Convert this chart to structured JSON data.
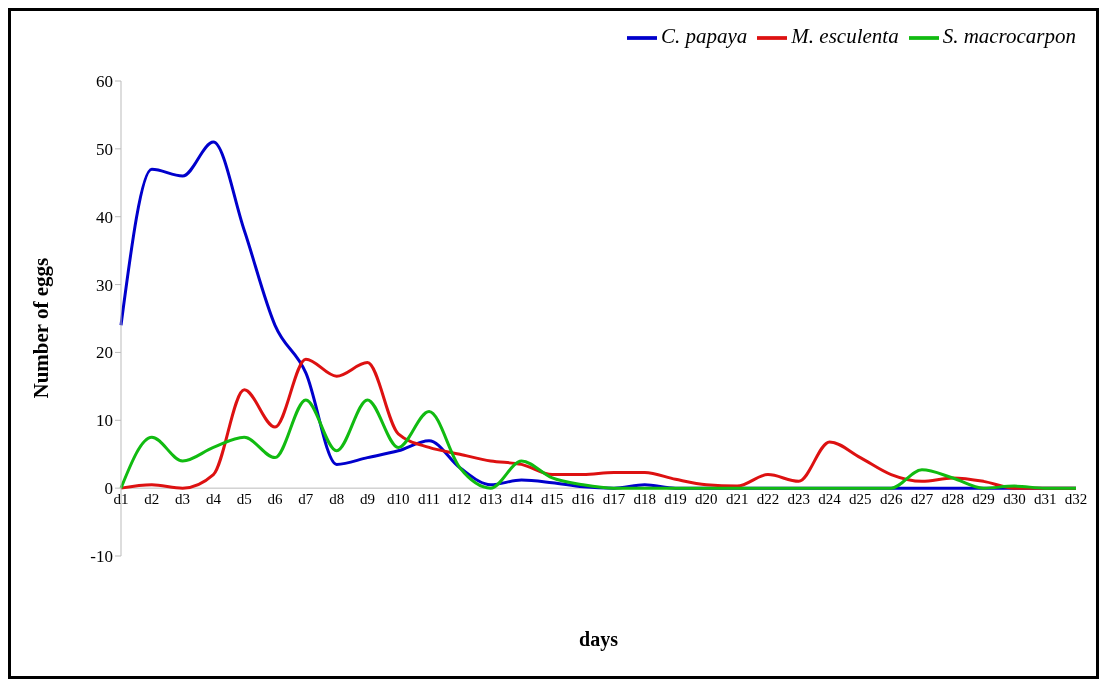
{
  "chart_data": {
    "type": "line",
    "xlabel": "days",
    "ylabel": "Number of eggs",
    "categories": [
      "d1",
      "d2",
      "d3",
      "d4",
      "d5",
      "d6",
      "d7",
      "d8",
      "d9",
      "d10",
      "d11",
      "d12",
      "d13",
      "d14",
      "d15",
      "d16",
      "d17",
      "d18",
      "d19",
      "d20",
      "d21",
      "d22",
      "d23",
      "d24",
      "d25",
      "d26",
      "d27",
      "d28",
      "d29",
      "d30",
      "d31",
      "d32"
    ],
    "series": [
      {
        "name": "C. papaya",
        "color": "#0000cc",
        "values": [
          24,
          47,
          46,
          51,
          38,
          24,
          17,
          3.5,
          4.5,
          5.5,
          7,
          3,
          0.5,
          1.2,
          0.8,
          0.2,
          0,
          0.5,
          0,
          0,
          0,
          0,
          0,
          0,
          0,
          0,
          0,
          0,
          0,
          0,
          0,
          0
        ]
      },
      {
        "name": "M. esculenta",
        "color": "#dd1111",
        "values": [
          0,
          0.5,
          0,
          2,
          14.5,
          9,
          19,
          16.5,
          18.5,
          8,
          6,
          5,
          4,
          3.5,
          2,
          2,
          2.3,
          2.3,
          1.3,
          0.5,
          0.3,
          2,
          1,
          6.8,
          4.5,
          2,
          1,
          1.5,
          1,
          0,
          0,
          0
        ]
      },
      {
        "name": "S. macrocarpon",
        "color": "#11bb11",
        "values": [
          0,
          7.5,
          4,
          6,
          7.5,
          4.5,
          13,
          5.5,
          13,
          6,
          11.3,
          3,
          0,
          4,
          1.5,
          0.5,
          0,
          0,
          0,
          0,
          0,
          0,
          0,
          0,
          0,
          0,
          2.7,
          1.5,
          0,
          0.3,
          0,
          0
        ]
      }
    ],
    "ylim": [
      -10,
      60
    ],
    "yticks": [
      -10,
      0,
      10,
      20,
      30,
      40,
      50,
      60
    ],
    "legend": "top right",
    "marker": "none",
    "line_style": "solid"
  }
}
